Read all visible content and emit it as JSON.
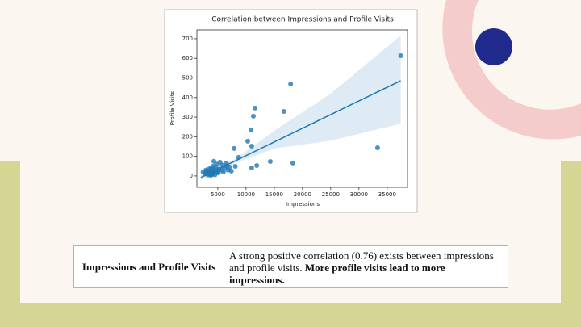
{
  "chart_data": {
    "type": "scatter",
    "title": "Correlation between Impressions and Profile Visits",
    "x_label": "Impressions",
    "y_label": "Profile Visits",
    "color": "#1f77b4",
    "x": [
      2400,
      2700,
      2900,
      3000,
      3100,
      3300,
      3400,
      3500,
      3600,
      3700,
      3800,
      3900,
      4000,
      4100,
      4200,
      4300,
      4400,
      4500,
      4600,
      4700,
      4800,
      5000,
      5200,
      5400,
      5600,
      5800,
      6000,
      6200,
      6500,
      6800,
      7100,
      7400,
      4300,
      3800,
      5100,
      6600,
      17900,
      11600,
      11300,
      16700,
      10900,
      11000,
      10300,
      7900,
      37400,
      33300,
      18300,
      14300,
      11900,
      11000,
      8700,
      8100
    ],
    "y": [
      20,
      10,
      30,
      15,
      25,
      5,
      35,
      12,
      22,
      8,
      40,
      18,
      28,
      10,
      50,
      14,
      32,
      6,
      45,
      20,
      60,
      25,
      35,
      70,
      30,
      55,
      20,
      40,
      65,
      30,
      45,
      25,
      75,
      3,
      15,
      50,
      469,
      346,
      305,
      329,
      235,
      152,
      177,
      140,
      613,
      144,
      66,
      74,
      53,
      41,
      95,
      49
    ],
    "regression": {
      "x": [
        2000,
        37400
      ],
      "y": [
        -8,
        486
      ]
    },
    "band": {
      "x": [
        2000,
        8000,
        15000,
        25000,
        37400
      ],
      "lower": [
        -20,
        64,
        140,
        180,
        267
      ],
      "upper": [
        5,
        85,
        230,
        420,
        716
      ]
    },
    "xlim": [
      1300,
      38600
    ],
    "ylim": [
      -58,
      745
    ],
    "xticks": [
      5000,
      10000,
      15000,
      20000,
      25000,
      30000,
      35000
    ],
    "yticks": [
      0,
      100,
      200,
      300,
      400,
      500,
      600,
      700
    ]
  },
  "table": {
    "rows": [
      {
        "label": "Impressions and Profile Visits",
        "text": "A strong positive correlation (0.76) exists between impressions and profile visits.",
        "emphasis": "More profile visits lead to more impressions."
      }
    ]
  }
}
